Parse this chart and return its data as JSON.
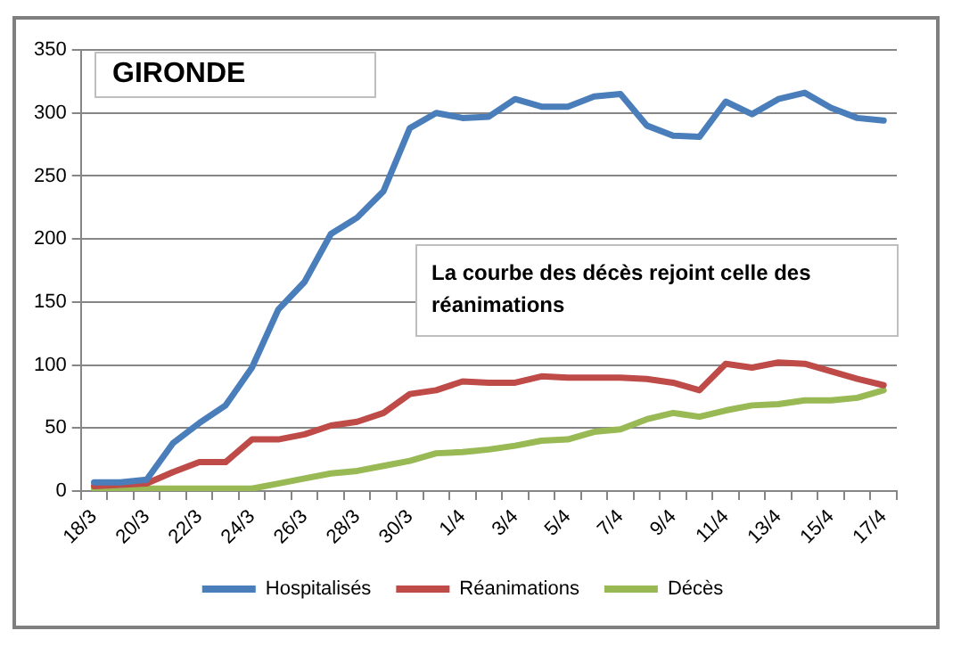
{
  "chart_data": {
    "type": "line",
    "title": "GIRONDE",
    "annotations": [
      "La courbe des décès rejoint celle des réanimations"
    ],
    "categories": [
      "18/3",
      null,
      "20/3",
      null,
      "22/3",
      null,
      "24/3",
      null,
      "26/3",
      null,
      "28/3",
      null,
      "30/3",
      null,
      "1/4",
      null,
      "3/4",
      null,
      "5/4",
      null,
      "7/4",
      null,
      "9/4",
      null,
      "11/4",
      null,
      "13/4",
      null,
      "15/4",
      null,
      "17/4"
    ],
    "series": [
      {
        "name": "Hospitalisés",
        "color": "#4a7ebb",
        "values": [
          7,
          7,
          9,
          38,
          54,
          68,
          98,
          144,
          166,
          204,
          217,
          238,
          288,
          300,
          296,
          297,
          311,
          305,
          305,
          313,
          315,
          290,
          282,
          281,
          309,
          299,
          311,
          316,
          304,
          296,
          294
        ]
      },
      {
        "name": "Réanimations",
        "color": "#be4b48",
        "values": [
          4,
          5,
          6,
          15,
          23,
          23,
          41,
          41,
          45,
          52,
          55,
          62,
          77,
          80,
          87,
          86,
          86,
          91,
          90,
          90,
          90,
          89,
          86,
          80,
          101,
          98,
          102,
          101,
          95,
          89,
          84
        ]
      },
      {
        "name": "Décès",
        "color": "#98b954",
        "values": [
          2,
          2,
          2,
          2,
          2,
          2,
          2,
          6,
          10,
          14,
          16,
          20,
          24,
          30,
          31,
          33,
          36,
          40,
          41,
          47,
          49,
          57,
          62,
          59,
          64,
          68,
          69,
          72,
          72,
          74,
          80
        ]
      }
    ],
    "ylim": [
      0,
      350
    ],
    "yticks": [
      0,
      50,
      100,
      150,
      200,
      250,
      300,
      350
    ],
    "grid": "y",
    "legend": "bottom",
    "marker": "none",
    "line_style": "solid"
  }
}
